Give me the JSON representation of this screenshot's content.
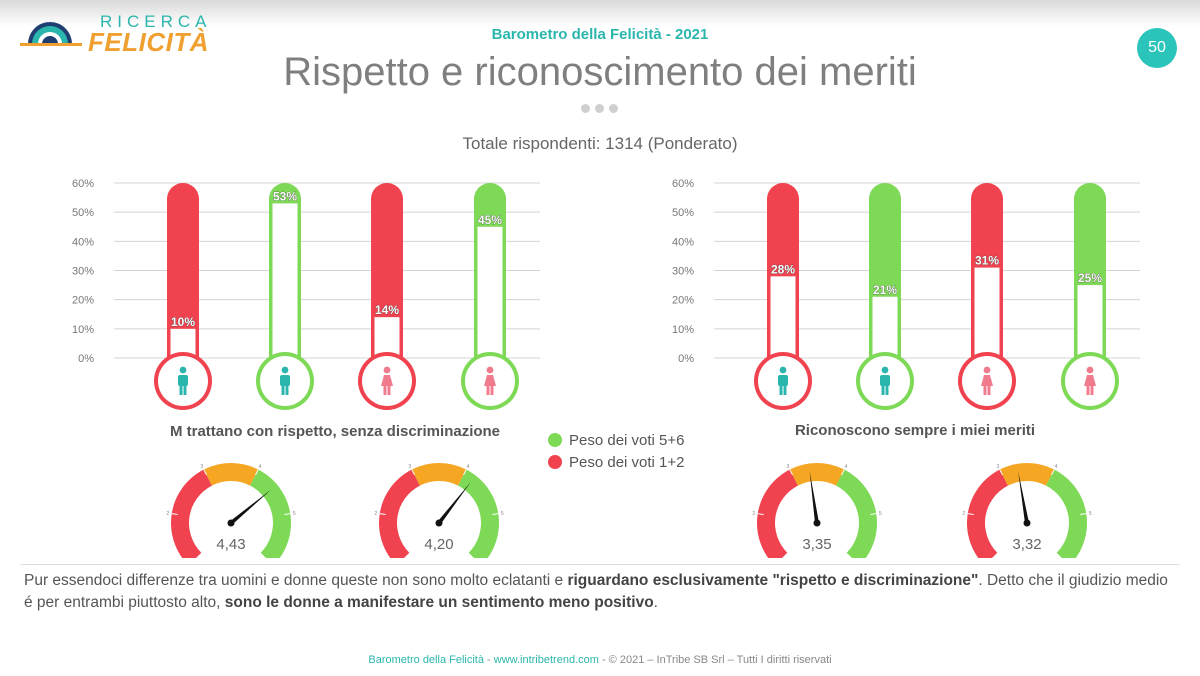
{
  "header": {
    "logo_top": "RICERCA",
    "logo_bottom": "FELICITÀ",
    "report_title": "Barometro della Felicità - 2021",
    "page_number": "50",
    "slide_title": "Rispetto e riconoscimento dei meriti",
    "respondents": "Totale rispondenti: 1314 (Ponderato)"
  },
  "colors": {
    "green": "#7ed957",
    "red": "#f0424f",
    "orange": "#f5a623",
    "teal": "#2bb6ad",
    "pink": "#f07b8c"
  },
  "chart_data": [
    {
      "type": "bar",
      "title": "M trattano con rispetto, senza discriminazione",
      "yticks": [
        "60%",
        "50%",
        "40%",
        "30%",
        "20%",
        "10%",
        "0%"
      ],
      "ylim": [
        0,
        60
      ],
      "bars": [
        {
          "gender": "M",
          "series": "Peso dei voti 1+2",
          "value": 10,
          "label": "10%"
        },
        {
          "gender": "M",
          "series": "Peso dei voti 5+6",
          "value": 53,
          "label": "53%"
        },
        {
          "gender": "F",
          "series": "Peso dei voti 1+2",
          "value": 14,
          "label": "14%"
        },
        {
          "gender": "F",
          "series": "Peso dei voti 5+6",
          "value": 45,
          "label": "45%"
        }
      ],
      "gauges": [
        {
          "value": 4.43,
          "label": "4,43"
        },
        {
          "value": 4.2,
          "label": "4,20"
        }
      ]
    },
    {
      "type": "bar",
      "title": "Riconoscono sempre i miei meriti",
      "yticks": [
        "60%",
        "50%",
        "40%",
        "30%",
        "20%",
        "10%",
        "0%"
      ],
      "ylim": [
        0,
        60
      ],
      "bars": [
        {
          "gender": "M",
          "series": "Peso dei voti 1+2",
          "value": 28,
          "label": "28%"
        },
        {
          "gender": "M",
          "series": "Peso dei voti 5+6",
          "value": 21,
          "label": "21%"
        },
        {
          "gender": "F",
          "series": "Peso dei voti 1+2",
          "value": 31,
          "label": "31%"
        },
        {
          "gender": "F",
          "series": "Peso dei voti 5+6",
          "value": 25,
          "label": "25%"
        }
      ],
      "gauges": [
        {
          "value": 3.35,
          "label": "3,35"
        },
        {
          "value": 3.32,
          "label": "3,32"
        }
      ]
    }
  ],
  "legend": [
    {
      "label": "Peso dei voti 5+6",
      "color": "#7ed957"
    },
    {
      "label": "Peso dei voti 1+2",
      "color": "#f0424f"
    }
  ],
  "gauge_scale": {
    "min": 1,
    "max": 6,
    "ticks": [
      "1",
      "2",
      "3",
      "4",
      "5",
      "6"
    ]
  },
  "footnote": {
    "part1": "Pur essendoci differenze tra uomini e donne queste non sono molto eclatanti e ",
    "bold1": "riguardano esclusivamente \"rispetto e discriminazione\"",
    "part2": ". Detto che il giudizio medio é per entrambi piuttosto alto, ",
    "bold2": "sono le donne a manifestare un sentimento meno positivo",
    "part3": "."
  },
  "footer": {
    "brand": "Barometro della Felicità",
    "sep1": " - ",
    "site": "www.intribetrend.com",
    "rest": " - © 2021 – InTribe SB Srl – Tutti I diritti riservati"
  }
}
